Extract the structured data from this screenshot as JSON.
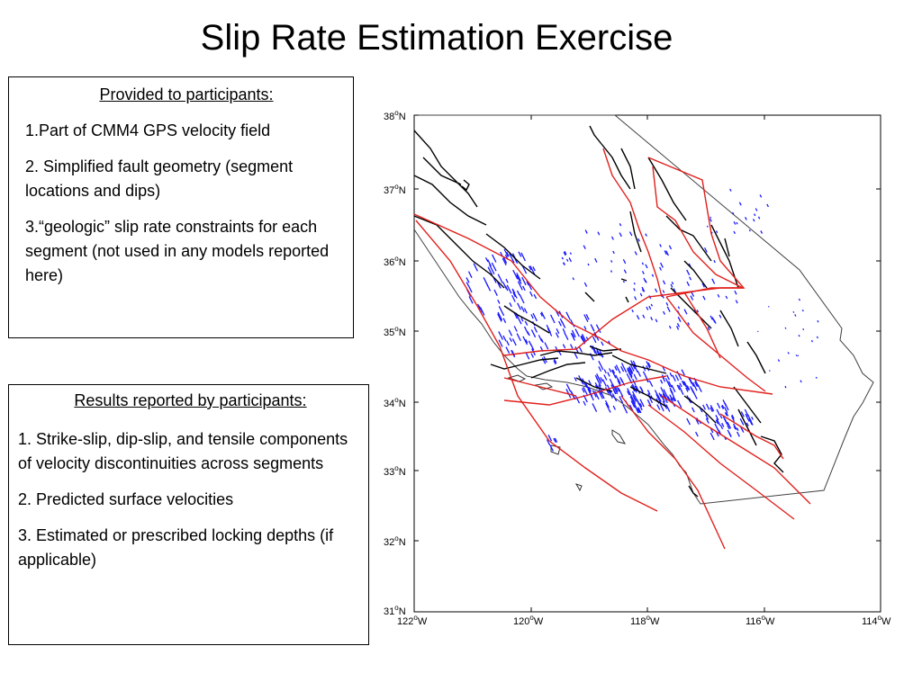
{
  "title": "Slip Rate Estimation Exercise",
  "provided_box": {
    "heading": "Provided to participants:",
    "items": [
      "1.Part of CMM4 GPS velocity field",
      "2. Simplified fault geometry (segment locations and dips)",
      "3.“geologic” slip rate constraints for each segment (not used in any models reported here)"
    ]
  },
  "results_box": {
    "heading": "Results reported by participants:",
    "items": [
      "1. Strike-slip, dip-slip, and tensile components of velocity discontinuities across segments",
      "2. Predicted surface velocities",
      "3. Estimated or prescribed locking depths (if applicable)"
    ]
  },
  "map": {
    "lat_labels": [
      {
        "deg": "38",
        "hemi": "N"
      },
      {
        "deg": "37",
        "hemi": "N"
      },
      {
        "deg": "36",
        "hemi": "N"
      },
      {
        "deg": "35",
        "hemi": "N"
      },
      {
        "deg": "34",
        "hemi": "N"
      },
      {
        "deg": "33",
        "hemi": "N"
      },
      {
        "deg": "32",
        "hemi": "N"
      },
      {
        "deg": "31",
        "hemi": "N"
      }
    ],
    "lon_labels": [
      {
        "deg": "122",
        "hemi": "W"
      },
      {
        "deg": "120",
        "hemi": "W"
      },
      {
        "deg": "118",
        "hemi": "W"
      },
      {
        "deg": "116",
        "hemi": "W"
      },
      {
        "deg": "114",
        "hemi": "W"
      }
    ],
    "colors": {
      "model_faults": "#e0201c",
      "mapped_faults": "#000000",
      "gps_vectors": "#1a1aff",
      "coast_border": "#404040"
    }
  }
}
